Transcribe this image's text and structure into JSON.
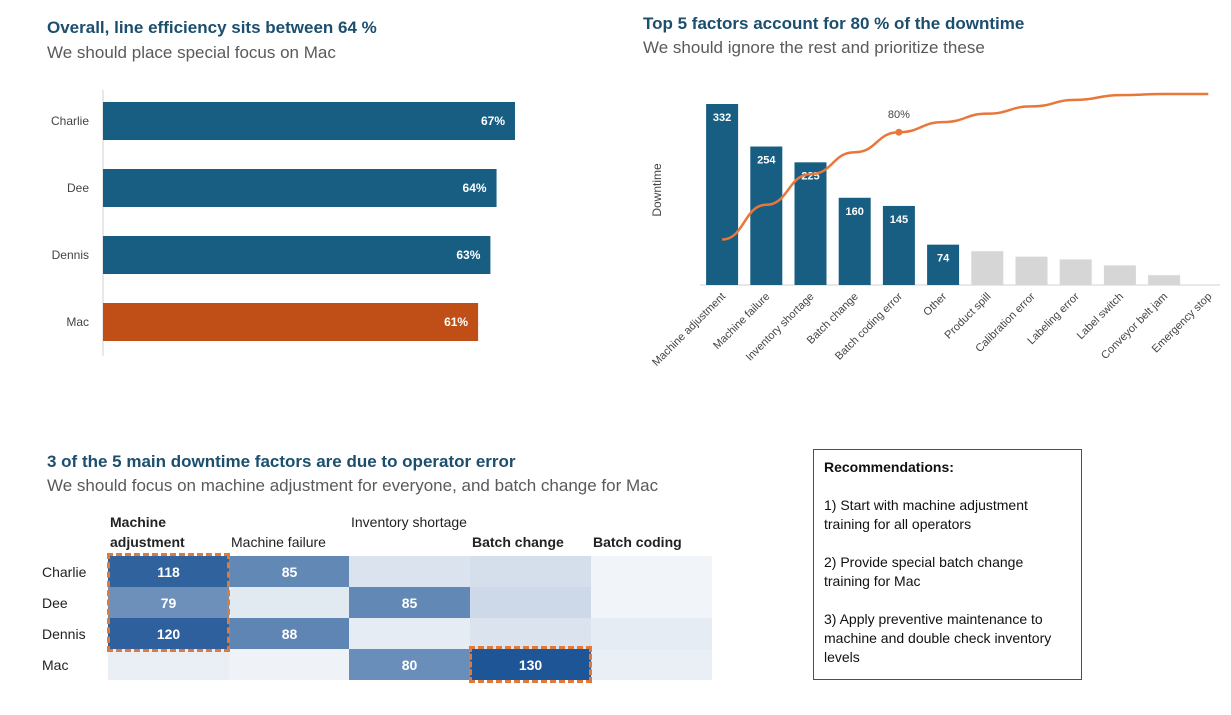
{
  "section1": {
    "title": "Overall, line efficiency sits between 64 %",
    "subtitle": "We should place special focus on Mac"
  },
  "section2": {
    "title": "Top 5 factors account for 80 % of the downtime",
    "subtitle": "We should ignore the rest and prioritize these"
  },
  "section3": {
    "title": "3 of the 5 main downtime factors are due to operator error",
    "subtitle": "We should focus on machine adjustment for everyone, and batch change for Mac"
  },
  "recommendations": {
    "title": "Recommendations:",
    "items": [
      "1)  Start with machine adjustment training for all operators",
      "2) Provide special batch change training for Mac",
      "3) Apply preventive maintenance to machine and double check inventory levels"
    ]
  },
  "colors": {
    "navy": "#175e82",
    "orange": "#c04f17",
    "gray": "#d6d6d6",
    "line": "#e8773a",
    "heat_dark": "#2e6ba6",
    "heat_highlight_border": "#e07a3a"
  },
  "chart_data": [
    {
      "type": "bar",
      "orientation": "horizontal",
      "categories": [
        "Charlie",
        "Dee",
        "Dennis",
        "Mac"
      ],
      "values": [
        67,
        64,
        63,
        61
      ],
      "value_labels": [
        "67%",
        "64%",
        "63%",
        "61%"
      ],
      "highlight": "Mac",
      "unit": "%"
    },
    {
      "type": "bar",
      "subtype": "pareto",
      "categories": [
        "Machine adjustment",
        "Machine failure",
        "Inventory shortage",
        "Batch change",
        "Batch coding error",
        "Other",
        "Product spill",
        "Calibration error",
        "Labeling error",
        "Label switch",
        "Conveyor belt jam",
        "Emergency stop"
      ],
      "values": [
        332,
        254,
        225,
        160,
        145,
        74,
        62,
        52,
        47,
        36,
        18,
        0
      ],
      "value_labels": [
        "332",
        "254",
        "225",
        "160",
        "145",
        "74",
        "",
        "",
        "",
        "",
        "",
        ""
      ],
      "ylabel": "Downtime",
      "cumulative_line": [
        0.238,
        0.42,
        0.58,
        0.695,
        0.8,
        0.853,
        0.897,
        0.935,
        0.969,
        0.994,
        1.0,
        1.0
      ],
      "annotation": "80%",
      "annotation_index": 4
    },
    {
      "type": "heatmap",
      "columns": [
        "Machine adjustment",
        "Machine failure",
        "Inventory shortage",
        "Batch change",
        "Batch coding error"
      ],
      "rows": [
        "Charlie",
        "Dee",
        "Dennis",
        "Mac"
      ],
      "values": [
        [
          118,
          85,
          15,
          18,
          5
        ],
        [
          79,
          12,
          85,
          22,
          5
        ],
        [
          120,
          88,
          10,
          15,
          10
        ],
        [
          8,
          6,
          80,
          130,
          8
        ]
      ],
      "shown_labels": [
        [
          "118",
          "85",
          "",
          "",
          ""
        ],
        [
          "79",
          "",
          "85",
          "",
          ""
        ],
        [
          "120",
          "88",
          "",
          "",
          ""
        ],
        [
          "",
          "",
          "80",
          "130",
          ""
        ]
      ],
      "highlighted": [
        [
          0,
          0
        ],
        [
          1,
          0
        ],
        [
          2,
          0
        ],
        [
          3,
          3
        ]
      ]
    }
  ]
}
